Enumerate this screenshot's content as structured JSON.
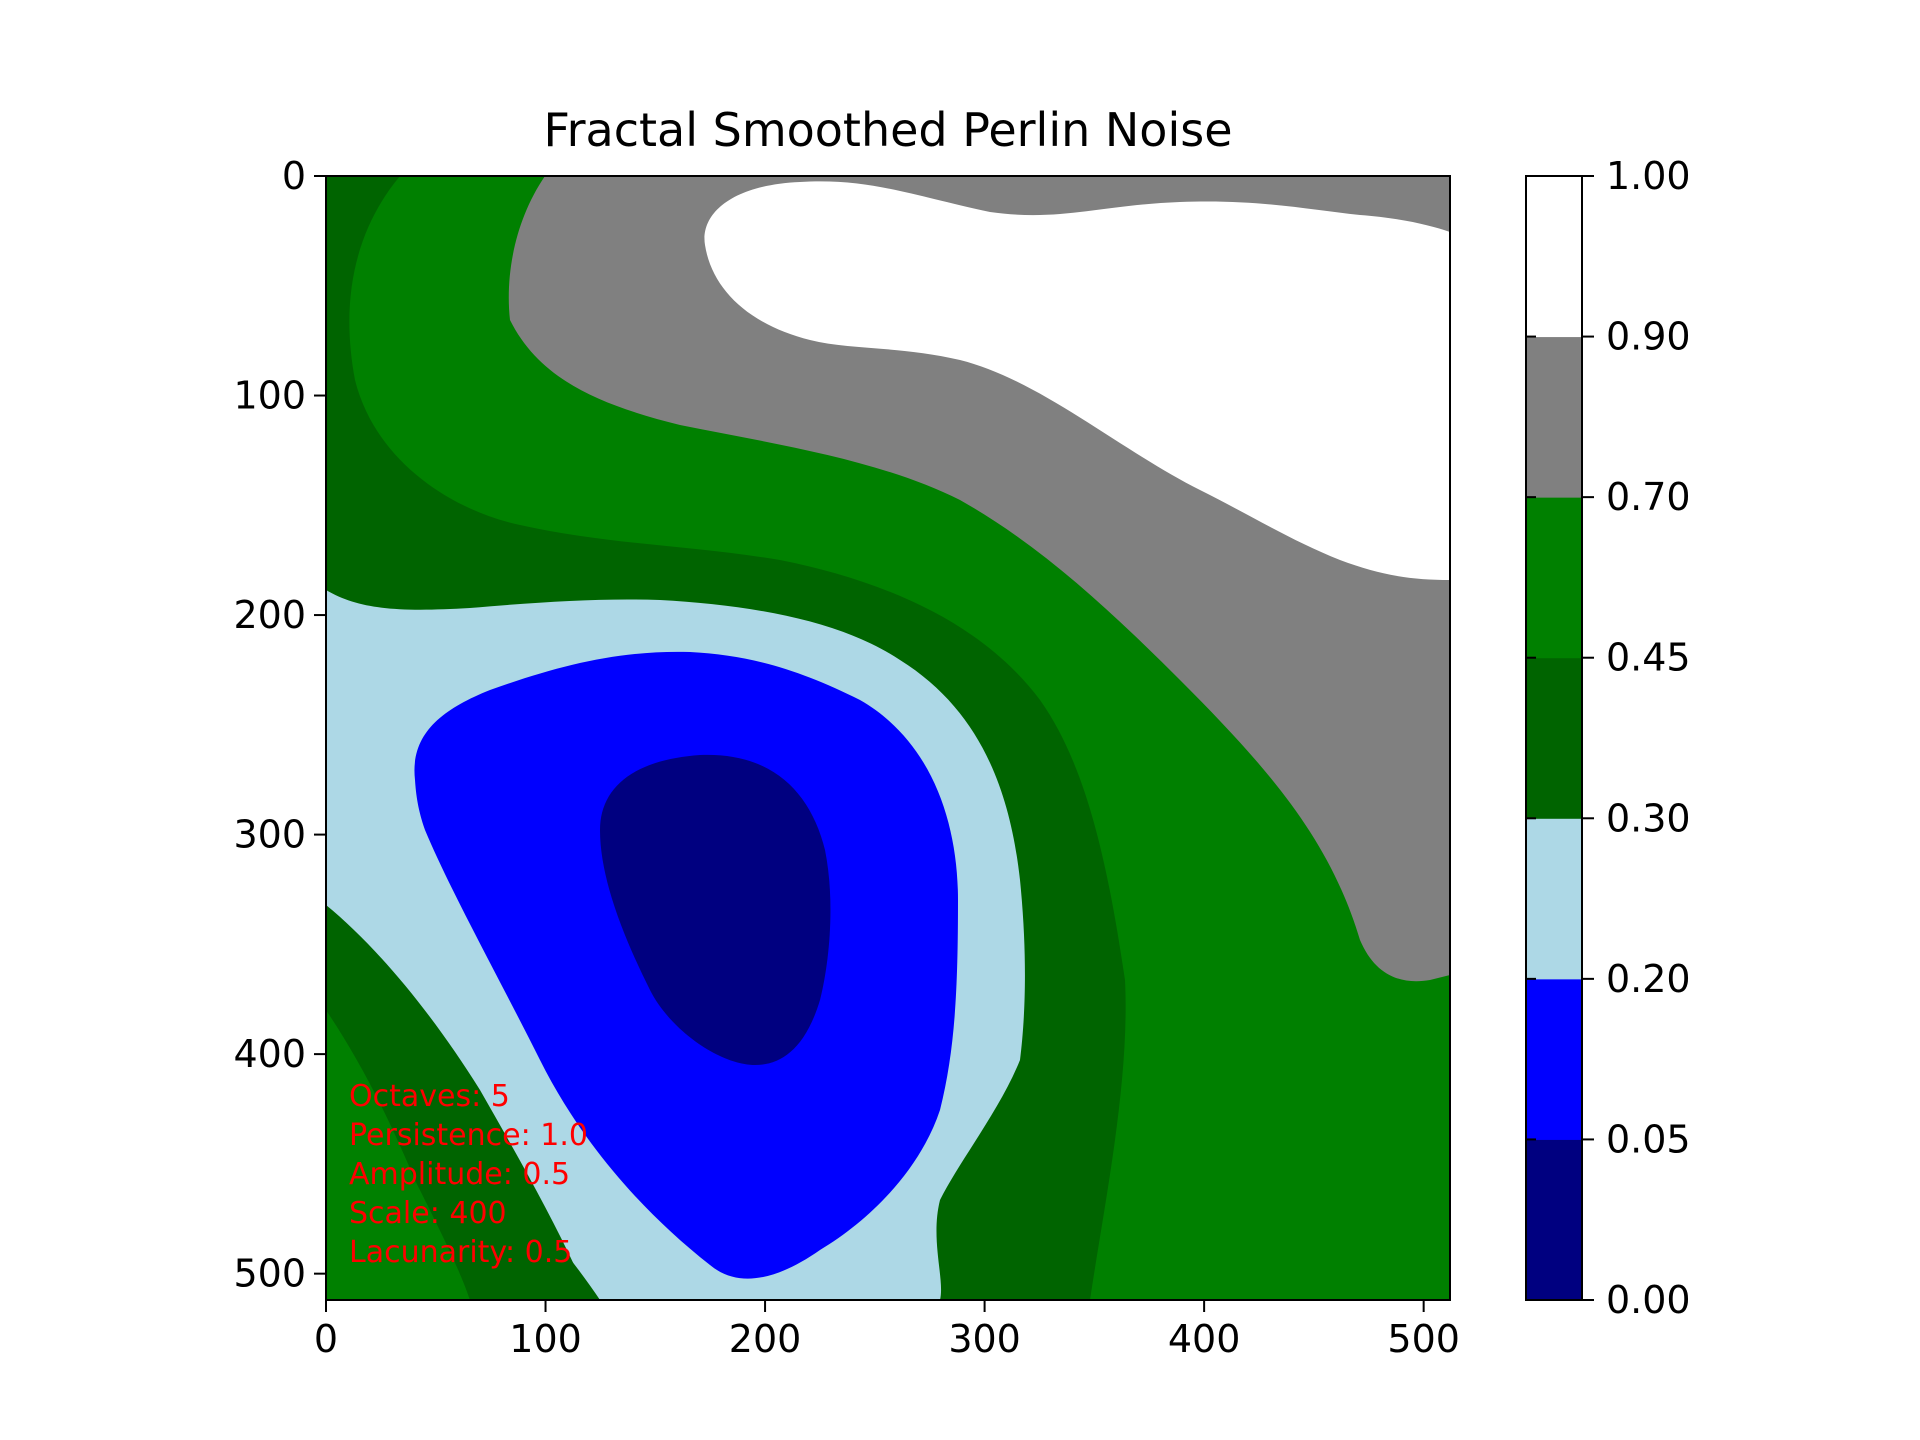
{
  "chart_data": {
    "type": "heatmap",
    "title": "Fractal Smoothed Perlin Noise",
    "xlabel": "",
    "ylabel": "",
    "xlim": [
      0,
      512
    ],
    "ylim": [
      512,
      0
    ],
    "x_ticks": [
      0,
      100,
      200,
      300,
      400,
      500
    ],
    "y_ticks": [
      0,
      100,
      200,
      300,
      400,
      500
    ],
    "x_tick_labels": [
      "0",
      "100",
      "200",
      "300",
      "400",
      "500"
    ],
    "y_tick_labels": [
      "0",
      "100",
      "200",
      "300",
      "400",
      "500"
    ],
    "colorbar": {
      "levels": [
        0.0,
        0.05,
        0.2,
        0.3,
        0.45,
        0.7,
        0.9,
        1.0
      ],
      "tick_labels": [
        "0.00",
        "0.05",
        "0.20",
        "0.30",
        "0.45",
        "0.70",
        "0.90",
        "1.00"
      ],
      "colors": [
        "#000080",
        "#0000ff",
        "#add8e6",
        "#006400",
        "#008000",
        "#808080",
        "#ffffff"
      ]
    },
    "annotations": [
      "Octaves: 5",
      "Persistence: 1.0",
      "Amplitude: 0.5",
      "Scale: 400",
      "Lacunarity: 0.5"
    ],
    "annotation_color": "#ff0000",
    "grid": false
  }
}
